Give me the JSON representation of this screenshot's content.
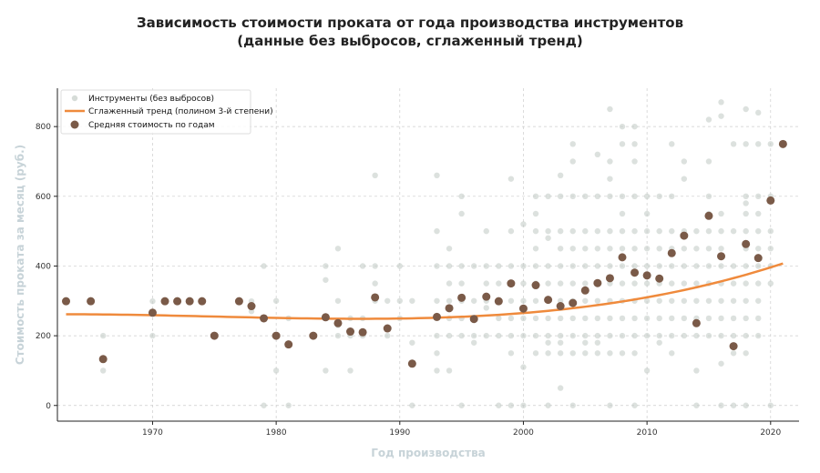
{
  "chart_data": {
    "type": "scatter",
    "title_line1": "Зависимость стоимости проката от года производства инструментов",
    "title_line2": "(данные без выбросов, сглаженный тренд)",
    "xlabel": "Год производства",
    "ylabel": "Стоимость проката за месяц (руб.)",
    "xlim": [
      1962.3,
      2022.3
    ],
    "ylim": [
      -45,
      910
    ],
    "xticks": [
      "1970",
      "1980",
      "1990",
      "2000",
      "2010",
      "2020"
    ],
    "yticks": [
      "0",
      "200",
      "400",
      "600",
      "800"
    ],
    "grid": true,
    "legend_position": "top-left",
    "legend": [
      "Инструменты (без выбросов)",
      "Сглаженный тренд (полином 3-й степени)",
      "Средняя стоимость по годам"
    ],
    "colors": {
      "points": "#c5cdc8",
      "trend": "#ef8a3c",
      "means": "#7a5a48",
      "axis_label": "#c7d3d8"
    },
    "trend_poly": {
      "center": 1990,
      "c0": 249.4,
      "c1": 0.5053,
      "c2": 0.08788,
      "c3": 0.00194
    },
    "mean_points": [
      [
        1963,
        299
      ],
      [
        1965,
        299
      ],
      [
        1966,
        133
      ],
      [
        1970,
        266
      ],
      [
        1971,
        299
      ],
      [
        1972,
        299
      ],
      [
        1973,
        299
      ],
      [
        1974,
        299
      ],
      [
        1975,
        200
      ],
      [
        1977,
        299
      ],
      [
        1978,
        285
      ],
      [
        1979,
        250
      ],
      [
        1980,
        200
      ],
      [
        1981,
        175
      ],
      [
        1983,
        200
      ],
      [
        1984,
        253
      ],
      [
        1985,
        236
      ],
      [
        1986,
        212
      ],
      [
        1987,
        210
      ],
      [
        1988,
        310
      ],
      [
        1989,
        221
      ],
      [
        1991,
        120
      ],
      [
        1993,
        254
      ],
      [
        1994,
        279
      ],
      [
        1995,
        309
      ],
      [
        1996,
        248
      ],
      [
        1997,
        312
      ],
      [
        1998,
        299
      ],
      [
        1999,
        350
      ],
      [
        2000,
        278
      ],
      [
        2001,
        345
      ],
      [
        2002,
        303
      ],
      [
        2003,
        285
      ],
      [
        2004,
        294
      ],
      [
        2005,
        330
      ],
      [
        2006,
        351
      ],
      [
        2007,
        365
      ],
      [
        2008,
        425
      ],
      [
        2009,
        381
      ],
      [
        2010,
        373
      ],
      [
        2011,
        364
      ],
      [
        2012,
        437
      ],
      [
        2013,
        487
      ],
      [
        2014,
        236
      ],
      [
        2015,
        544
      ],
      [
        2016,
        428
      ],
      [
        2017,
        170
      ],
      [
        2018,
        463
      ],
      [
        2019,
        423
      ],
      [
        2020,
        588
      ],
      [
        2021,
        750
      ]
    ],
    "raw_points": [
      [
        1963,
        299
      ],
      [
        1965,
        299
      ],
      [
        1966,
        200
      ],
      [
        1966,
        100
      ],
      [
        1970,
        299
      ],
      [
        1970,
        200
      ],
      [
        1971,
        299
      ],
      [
        1972,
        299
      ],
      [
        1973,
        299
      ],
      [
        1974,
        299
      ],
      [
        1975,
        200
      ],
      [
        1977,
        299
      ],
      [
        1978,
        299
      ],
      [
        1978,
        270
      ],
      [
        1979,
        400
      ],
      [
        1979,
        250
      ],
      [
        1979,
        0
      ],
      [
        1980,
        300
      ],
      [
        1980,
        200
      ],
      [
        1980,
        100
      ],
      [
        1981,
        250
      ],
      [
        1981,
        0
      ],
      [
        1981,
        175
      ],
      [
        1983,
        200
      ],
      [
        1984,
        400
      ],
      [
        1984,
        360
      ],
      [
        1984,
        250
      ],
      [
        1984,
        100
      ],
      [
        1985,
        450
      ],
      [
        1985,
        300
      ],
      [
        1985,
        230
      ],
      [
        1985,
        200
      ],
      [
        1986,
        250
      ],
      [
        1986,
        200
      ],
      [
        1986,
        100
      ],
      [
        1987,
        400
      ],
      [
        1987,
        250
      ],
      [
        1987,
        200
      ],
      [
        1988,
        660
      ],
      [
        1988,
        400
      ],
      [
        1988,
        350
      ],
      [
        1988,
        300
      ],
      [
        1989,
        300
      ],
      [
        1989,
        200
      ],
      [
        1989,
        220
      ],
      [
        1990,
        250
      ],
      [
        1990,
        300
      ],
      [
        1990,
        400
      ],
      [
        1991,
        300
      ],
      [
        1991,
        0
      ],
      [
        1991,
        180
      ],
      [
        1993,
        660
      ],
      [
        1993,
        500
      ],
      [
        1993,
        400
      ],
      [
        1993,
        300
      ],
      [
        1993,
        250
      ],
      [
        1993,
        200
      ],
      [
        1993,
        150
      ],
      [
        1993,
        100
      ],
      [
        1994,
        450
      ],
      [
        1994,
        400
      ],
      [
        1994,
        350
      ],
      [
        1994,
        300
      ],
      [
        1994,
        280
      ],
      [
        1994,
        250
      ],
      [
        1994,
        200
      ],
      [
        1994,
        100
      ],
      [
        1995,
        600
      ],
      [
        1995,
        550
      ],
      [
        1995,
        400
      ],
      [
        1995,
        350
      ],
      [
        1995,
        300
      ],
      [
        1995,
        250
      ],
      [
        1995,
        200
      ],
      [
        1995,
        0
      ],
      [
        1996,
        400
      ],
      [
        1996,
        300
      ],
      [
        1996,
        250
      ],
      [
        1996,
        200
      ],
      [
        1996,
        180
      ],
      [
        1997,
        500
      ],
      [
        1997,
        400
      ],
      [
        1997,
        350
      ],
      [
        1997,
        300
      ],
      [
        1997,
        280
      ],
      [
        1997,
        200
      ],
      [
        1998,
        400
      ],
      [
        1998,
        350
      ],
      [
        1998,
        300
      ],
      [
        1998,
        250
      ],
      [
        1998,
        200
      ],
      [
        1998,
        0
      ],
      [
        1999,
        650
      ],
      [
        1999,
        500
      ],
      [
        1999,
        400
      ],
      [
        1999,
        300
      ],
      [
        1999,
        250
      ],
      [
        1999,
        200
      ],
      [
        1999,
        150
      ],
      [
        1999,
        0
      ],
      [
        2000,
        520
      ],
      [
        2000,
        400
      ],
      [
        2000,
        350
      ],
      [
        2000,
        300
      ],
      [
        2000,
        250
      ],
      [
        2000,
        200
      ],
      [
        2000,
        110
      ],
      [
        2000,
        0
      ],
      [
        2001,
        600
      ],
      [
        2001,
        550
      ],
      [
        2001,
        500
      ],
      [
        2001,
        450
      ],
      [
        2001,
        400
      ],
      [
        2001,
        350
      ],
      [
        2001,
        300
      ],
      [
        2001,
        250
      ],
      [
        2001,
        200
      ],
      [
        2001,
        150
      ],
      [
        2002,
        600
      ],
      [
        2002,
        500
      ],
      [
        2002,
        480
      ],
      [
        2002,
        400
      ],
      [
        2002,
        350
      ],
      [
        2002,
        300
      ],
      [
        2002,
        250
      ],
      [
        2002,
        200
      ],
      [
        2002,
        180
      ],
      [
        2002,
        150
      ],
      [
        2002,
        0
      ],
      [
        2003,
        660
      ],
      [
        2003,
        600
      ],
      [
        2003,
        500
      ],
      [
        2003,
        450
      ],
      [
        2003,
        400
      ],
      [
        2003,
        350
      ],
      [
        2003,
        300
      ],
      [
        2003,
        250
      ],
      [
        2003,
        200
      ],
      [
        2003,
        180
      ],
      [
        2003,
        150
      ],
      [
        2003,
        50
      ],
      [
        2004,
        750
      ],
      [
        2004,
        700
      ],
      [
        2004,
        600
      ],
      [
        2004,
        500
      ],
      [
        2004,
        450
      ],
      [
        2004,
        400
      ],
      [
        2004,
        350
      ],
      [
        2004,
        300
      ],
      [
        2004,
        250
      ],
      [
        2004,
        200
      ],
      [
        2004,
        150
      ],
      [
        2004,
        0
      ],
      [
        2005,
        600
      ],
      [
        2005,
        500
      ],
      [
        2005,
        450
      ],
      [
        2005,
        400
      ],
      [
        2005,
        350
      ],
      [
        2005,
        300
      ],
      [
        2005,
        250
      ],
      [
        2005,
        200
      ],
      [
        2005,
        180
      ],
      [
        2005,
        150
      ],
      [
        2006,
        720
      ],
      [
        2006,
        600
      ],
      [
        2006,
        500
      ],
      [
        2006,
        450
      ],
      [
        2006,
        400
      ],
      [
        2006,
        350
      ],
      [
        2006,
        300
      ],
      [
        2006,
        250
      ],
      [
        2006,
        200
      ],
      [
        2006,
        180
      ],
      [
        2006,
        150
      ],
      [
        2007,
        850
      ],
      [
        2007,
        700
      ],
      [
        2007,
        650
      ],
      [
        2007,
        600
      ],
      [
        2007,
        500
      ],
      [
        2007,
        450
      ],
      [
        2007,
        400
      ],
      [
        2007,
        350
      ],
      [
        2007,
        300
      ],
      [
        2007,
        250
      ],
      [
        2007,
        200
      ],
      [
        2007,
        150
      ],
      [
        2007,
        0
      ],
      [
        2008,
        800
      ],
      [
        2008,
        750
      ],
      [
        2008,
        600
      ],
      [
        2008,
        550
      ],
      [
        2008,
        500
      ],
      [
        2008,
        450
      ],
      [
        2008,
        400
      ],
      [
        2008,
        350
      ],
      [
        2008,
        300
      ],
      [
        2008,
        250
      ],
      [
        2008,
        200
      ],
      [
        2008,
        150
      ],
      [
        2009,
        800
      ],
      [
        2009,
        750
      ],
      [
        2009,
        700
      ],
      [
        2009,
        600
      ],
      [
        2009,
        500
      ],
      [
        2009,
        450
      ],
      [
        2009,
        400
      ],
      [
        2009,
        350
      ],
      [
        2009,
        300
      ],
      [
        2009,
        250
      ],
      [
        2009,
        200
      ],
      [
        2009,
        150
      ],
      [
        2009,
        0
      ],
      [
        2010,
        600
      ],
      [
        2010,
        550
      ],
      [
        2010,
        500
      ],
      [
        2010,
        450
      ],
      [
        2010,
        400
      ],
      [
        2010,
        350
      ],
      [
        2010,
        300
      ],
      [
        2010,
        250
      ],
      [
        2010,
        200
      ],
      [
        2010,
        100
      ],
      [
        2011,
        600
      ],
      [
        2011,
        500
      ],
      [
        2011,
        450
      ],
      [
        2011,
        400
      ],
      [
        2011,
        350
      ],
      [
        2011,
        300
      ],
      [
        2011,
        250
      ],
      [
        2011,
        200
      ],
      [
        2011,
        180
      ],
      [
        2012,
        750
      ],
      [
        2012,
        600
      ],
      [
        2012,
        500
      ],
      [
        2012,
        450
      ],
      [
        2012,
        400
      ],
      [
        2012,
        350
      ],
      [
        2012,
        300
      ],
      [
        2012,
        250
      ],
      [
        2012,
        200
      ],
      [
        2012,
        150
      ],
      [
        2013,
        700
      ],
      [
        2013,
        650
      ],
      [
        2013,
        500
      ],
      [
        2013,
        450
      ],
      [
        2013,
        400
      ],
      [
        2013,
        350
      ],
      [
        2013,
        300
      ],
      [
        2013,
        250
      ],
      [
        2013,
        200
      ],
      [
        2014,
        500
      ],
      [
        2014,
        450
      ],
      [
        2014,
        400
      ],
      [
        2014,
        350
      ],
      [
        2014,
        300
      ],
      [
        2014,
        250
      ],
      [
        2014,
        200
      ],
      [
        2014,
        100
      ],
      [
        2014,
        0
      ],
      [
        2015,
        820
      ],
      [
        2015,
        700
      ],
      [
        2015,
        600
      ],
      [
        2015,
        550
      ],
      [
        2015,
        500
      ],
      [
        2015,
        450
      ],
      [
        2015,
        400
      ],
      [
        2015,
        350
      ],
      [
        2015,
        300
      ],
      [
        2015,
        250
      ],
      [
        2015,
        200
      ],
      [
        2016,
        870
      ],
      [
        2016,
        830
      ],
      [
        2016,
        550
      ],
      [
        2016,
        500
      ],
      [
        2016,
        450
      ],
      [
        2016,
        400
      ],
      [
        2016,
        350
      ],
      [
        2016,
        300
      ],
      [
        2016,
        250
      ],
      [
        2016,
        200
      ],
      [
        2016,
        120
      ],
      [
        2016,
        0
      ],
      [
        2017,
        750
      ],
      [
        2017,
        500
      ],
      [
        2017,
        400
      ],
      [
        2017,
        350
      ],
      [
        2017,
        300
      ],
      [
        2017,
        250
      ],
      [
        2017,
        200
      ],
      [
        2017,
        150
      ],
      [
        2017,
        0
      ],
      [
        2018,
        850
      ],
      [
        2018,
        750
      ],
      [
        2018,
        600
      ],
      [
        2018,
        580
      ],
      [
        2018,
        550
      ],
      [
        2018,
        500
      ],
      [
        2018,
        450
      ],
      [
        2018,
        400
      ],
      [
        2018,
        350
      ],
      [
        2018,
        300
      ],
      [
        2018,
        250
      ],
      [
        2018,
        200
      ],
      [
        2018,
        150
      ],
      [
        2018,
        0
      ],
      [
        2019,
        840
      ],
      [
        2019,
        750
      ],
      [
        2019,
        600
      ],
      [
        2019,
        550
      ],
      [
        2019,
        500
      ],
      [
        2019,
        450
      ],
      [
        2019,
        400
      ],
      [
        2019,
        350
      ],
      [
        2019,
        300
      ],
      [
        2019,
        250
      ],
      [
        2019,
        200
      ],
      [
        2020,
        750
      ],
      [
        2020,
        600
      ],
      [
        2020,
        500
      ],
      [
        2020,
        450
      ],
      [
        2020,
        400
      ],
      [
        2020,
        350
      ],
      [
        2020,
        0
      ],
      [
        2021,
        750
      ]
    ]
  }
}
